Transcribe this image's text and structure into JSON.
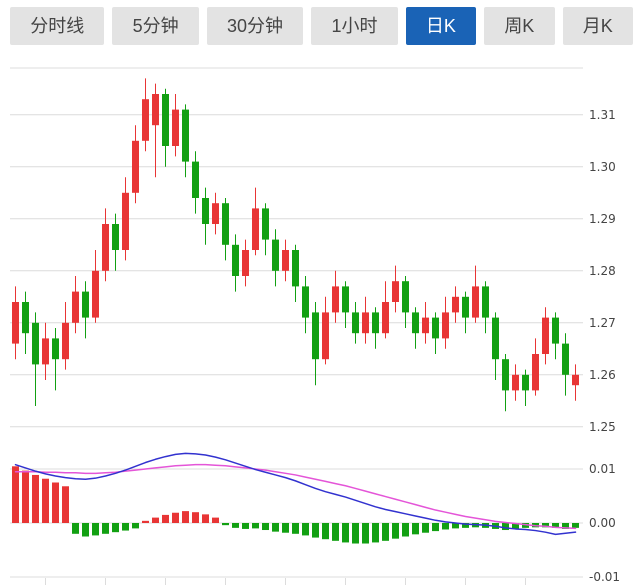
{
  "tabs": {
    "items": [
      {
        "label": "分时线",
        "active": false
      },
      {
        "label": "5分钟",
        "active": false
      },
      {
        "label": "30分钟",
        "active": false
      },
      {
        "label": "1小时",
        "active": false
      },
      {
        "label": "日K",
        "active": true
      },
      {
        "label": "周K",
        "active": false
      },
      {
        "label": "月K",
        "active": false
      }
    ]
  },
  "colors": {
    "up": "#e83535",
    "down": "#12a012",
    "dif_line": "#3232cf",
    "dea_line": "#e455d8",
    "grid": "#dcdcdc",
    "axis_text": "#444444",
    "tab_bg": "#e3e3e3",
    "tab_text": "#454545",
    "tab_active_bg": "#1a63b6",
    "tab_active_text": "#ffffff"
  },
  "chart_data": {
    "type": "candlestick",
    "panels": [
      "price",
      "macd"
    ],
    "color_convention": "red-up-green-down",
    "x_count": 57,
    "price_axis": {
      "labels": [
        "1.31",
        "1.30",
        "1.29",
        "1.28",
        "1.27",
        "1.26",
        "1.25"
      ],
      "values": [
        1.31,
        1.3,
        1.29,
        1.28,
        1.27,
        1.26,
        1.25
      ],
      "range": [
        1.2475,
        1.319
      ]
    },
    "macd_axis": {
      "labels": [
        "0.01",
        "0.00",
        "-0.01"
      ],
      "values": [
        0.01,
        0.0,
        -0.01
      ],
      "range": [
        -0.012,
        0.0113
      ]
    },
    "candles": {
      "format": "ohlc",
      "values": [
        [
          1.266,
          1.277,
          1.263,
          1.274
        ],
        [
          1.274,
          1.276,
          1.264,
          1.268
        ],
        [
          1.27,
          1.272,
          1.254,
          1.262
        ],
        [
          1.262,
          1.27,
          1.259,
          1.267
        ],
        [
          1.267,
          1.269,
          1.257,
          1.263
        ],
        [
          1.263,
          1.274,
          1.261,
          1.27
        ],
        [
          1.27,
          1.279,
          1.268,
          1.276
        ],
        [
          1.276,
          1.278,
          1.267,
          1.271
        ],
        [
          1.271,
          1.284,
          1.27,
          1.28
        ],
        [
          1.28,
          1.292,
          1.278,
          1.289
        ],
        [
          1.289,
          1.291,
          1.28,
          1.284
        ],
        [
          1.284,
          1.298,
          1.282,
          1.295
        ],
        [
          1.295,
          1.308,
          1.293,
          1.305
        ],
        [
          1.305,
          1.317,
          1.303,
          1.313
        ],
        [
          1.308,
          1.316,
          1.298,
          1.314
        ],
        [
          1.314,
          1.315,
          1.3,
          1.304
        ],
        [
          1.304,
          1.314,
          1.302,
          1.311
        ],
        [
          1.311,
          1.312,
          1.298,
          1.301
        ],
        [
          1.301,
          1.303,
          1.291,
          1.294
        ],
        [
          1.294,
          1.296,
          1.285,
          1.289
        ],
        [
          1.289,
          1.295,
          1.287,
          1.293
        ],
        [
          1.293,
          1.294,
          1.282,
          1.285
        ],
        [
          1.285,
          1.287,
          1.276,
          1.279
        ],
        [
          1.279,
          1.286,
          1.277,
          1.284
        ],
        [
          1.284,
          1.296,
          1.283,
          1.292
        ],
        [
          1.292,
          1.293,
          1.283,
          1.286
        ],
        [
          1.286,
          1.288,
          1.277,
          1.28
        ],
        [
          1.28,
          1.286,
          1.278,
          1.284
        ],
        [
          1.284,
          1.285,
          1.274,
          1.277
        ],
        [
          1.277,
          1.279,
          1.268,
          1.271
        ],
        [
          1.272,
          1.274,
          1.258,
          1.263
        ],
        [
          1.263,
          1.275,
          1.262,
          1.272
        ],
        [
          1.272,
          1.28,
          1.27,
          1.277
        ],
        [
          1.277,
          1.278,
          1.269,
          1.272
        ],
        [
          1.272,
          1.274,
          1.266,
          1.268
        ],
        [
          1.268,
          1.275,
          1.266,
          1.272
        ],
        [
          1.272,
          1.273,
          1.265,
          1.268
        ],
        [
          1.268,
          1.278,
          1.267,
          1.274
        ],
        [
          1.274,
          1.281,
          1.272,
          1.278
        ],
        [
          1.278,
          1.279,
          1.269,
          1.272
        ],
        [
          1.272,
          1.273,
          1.265,
          1.268
        ],
        [
          1.268,
          1.274,
          1.266,
          1.271
        ],
        [
          1.271,
          1.272,
          1.264,
          1.267
        ],
        [
          1.267,
          1.275,
          1.265,
          1.272
        ],
        [
          1.272,
          1.277,
          1.27,
          1.275
        ],
        [
          1.275,
          1.276,
          1.268,
          1.271
        ],
        [
          1.271,
          1.281,
          1.27,
          1.277
        ],
        [
          1.277,
          1.278,
          1.268,
          1.271
        ],
        [
          1.271,
          1.272,
          1.259,
          1.263
        ],
        [
          1.263,
          1.264,
          1.253,
          1.257
        ],
        [
          1.257,
          1.262,
          1.255,
          1.26
        ],
        [
          1.26,
          1.261,
          1.254,
          1.257
        ],
        [
          1.257,
          1.267,
          1.256,
          1.264
        ],
        [
          1.264,
          1.273,
          1.262,
          1.271
        ],
        [
          1.271,
          1.272,
          1.263,
          1.266
        ],
        [
          1.266,
          1.268,
          1.256,
          1.26
        ],
        [
          1.258,
          1.262,
          1.255,
          1.26
        ]
      ]
    },
    "macd": {
      "hist": [
        0.0105,
        0.0097,
        0.0089,
        0.0082,
        0.0075,
        0.0068,
        -0.002,
        -0.0025,
        -0.0023,
        -0.002,
        -0.0017,
        -0.0014,
        -0.001,
        0.0004,
        0.001,
        0.0015,
        0.0019,
        0.0022,
        0.002,
        0.0016,
        0.001,
        -0.0004,
        -0.0009,
        -0.0011,
        -0.001,
        -0.0013,
        -0.0016,
        -0.0018,
        -0.002,
        -0.0023,
        -0.0027,
        -0.003,
        -0.0033,
        -0.0036,
        -0.0038,
        -0.0038,
        -0.0036,
        -0.0033,
        -0.0029,
        -0.0025,
        -0.0021,
        -0.0018,
        -0.0015,
        -0.0012,
        -0.001,
        -0.0009,
        -0.0008,
        -0.0009,
        -0.0011,
        -0.0013,
        -0.0011,
        -0.0009,
        -0.0008,
        -0.0008,
        -0.0009,
        -0.0011,
        -0.0009
      ],
      "dif": [
        0.0108,
        0.0102,
        0.0096,
        0.0091,
        0.0087,
        0.0084,
        0.0082,
        0.0081,
        0.0083,
        0.0087,
        0.0092,
        0.0098,
        0.0105,
        0.0112,
        0.0118,
        0.0123,
        0.0127,
        0.0129,
        0.0128,
        0.0126,
        0.0122,
        0.0117,
        0.0111,
        0.0105,
        0.0099,
        0.0094,
        0.0089,
        0.0084,
        0.0078,
        0.0071,
        0.0064,
        0.0058,
        0.0053,
        0.0048,
        0.0042,
        0.0036,
        0.003,
        0.0025,
        0.0021,
        0.0017,
        0.0013,
        0.0009,
        0.0005,
        0.0002,
        0.0,
        -0.0002,
        -0.0003,
        -0.0004,
        -0.0006,
        -0.0009,
        -0.0011,
        -0.0012,
        -0.0014,
        -0.0017,
        -0.0021,
        -0.0019,
        -0.0017
      ],
      "dea": [
        0.0095,
        0.0095,
        0.0095,
        0.0094,
        0.0094,
        0.0093,
        0.0093,
        0.0092,
        0.0092,
        0.0093,
        0.0094,
        0.0096,
        0.0098,
        0.01,
        0.0102,
        0.0104,
        0.0106,
        0.0107,
        0.0108,
        0.0108,
        0.0107,
        0.0106,
        0.0104,
        0.0102,
        0.01,
        0.0098,
        0.0095,
        0.0092,
        0.0089,
        0.0085,
        0.0081,
        0.0077,
        0.0073,
        0.0069,
        0.0064,
        0.0059,
        0.0054,
        0.0049,
        0.0044,
        0.0039,
        0.0034,
        0.0029,
        0.0024,
        0.002,
        0.0016,
        0.0012,
        0.0009,
        0.0006,
        0.0003,
        0.0001,
        -0.0001,
        -0.0003,
        -0.0005,
        -0.0006,
        -0.0008,
        -0.0009,
        -0.001
      ]
    }
  }
}
